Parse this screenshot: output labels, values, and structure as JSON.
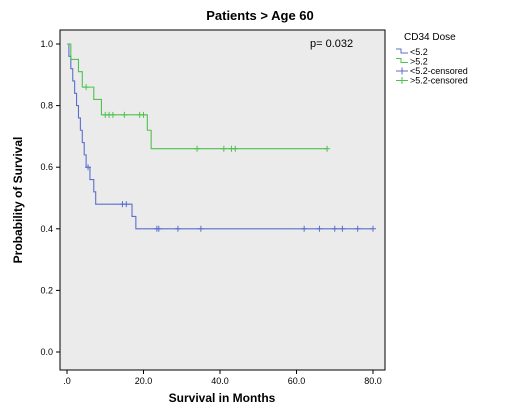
{
  "colors": {
    "background": "#ebebeb",
    "lt52": "#5b6fcc",
    "gt52": "#4fc24f"
  },
  "chart_data": {
    "type": "line",
    "subtype": "kaplan-meier step",
    "title": "Patients > Age 60",
    "xlabel": "Survival in Months",
    "ylabel": "Probability of Survival",
    "xlim": [
      0,
      80
    ],
    "ylim": [
      0,
      1
    ],
    "xticks": [
      ".0",
      "20.0",
      "40.0",
      "60.0",
      "80.0"
    ],
    "yticks": [
      "0.0",
      "0.2",
      "0.4",
      "0.6",
      "0.8",
      "1.0"
    ],
    "annotation": "p= 0.032",
    "legend": {
      "title": "CD34 Dose",
      "placement": "right",
      "entries": [
        "<5.2",
        ">5.2",
        "<5.2-censored",
        ">5.2-censored"
      ]
    },
    "series": [
      {
        "name": "<5.2",
        "color": "#5b6fcc",
        "steps": [
          [
            0,
            1.0
          ],
          [
            0.5,
            0.96
          ],
          [
            1,
            0.92
          ],
          [
            1.5,
            0.88
          ],
          [
            2,
            0.84
          ],
          [
            2.5,
            0.8
          ],
          [
            3,
            0.76
          ],
          [
            3.5,
            0.72
          ],
          [
            4,
            0.68
          ],
          [
            4.5,
            0.64
          ],
          [
            5,
            0.6
          ],
          [
            6,
            0.56
          ],
          [
            7,
            0.52
          ],
          [
            7.5,
            0.48
          ],
          [
            17,
            0.44
          ],
          [
            18,
            0.4
          ],
          [
            80,
            0.4
          ]
        ],
        "censored": [
          [
            5.5,
            0.6
          ],
          [
            14.5,
            0.48
          ],
          [
            15.5,
            0.48
          ],
          [
            23.5,
            0.4
          ],
          [
            24,
            0.4
          ],
          [
            29,
            0.4
          ],
          [
            35,
            0.4
          ],
          [
            62,
            0.4
          ],
          [
            66,
            0.4
          ],
          [
            70,
            0.4
          ],
          [
            72,
            0.4
          ],
          [
            76,
            0.4
          ],
          [
            80,
            0.4
          ]
        ]
      },
      {
        "name": ">5.2",
        "color": "#4fc24f",
        "steps": [
          [
            0,
            1.0
          ],
          [
            1,
            0.95
          ],
          [
            3,
            0.91
          ],
          [
            4,
            0.86
          ],
          [
            7,
            0.82
          ],
          [
            9,
            0.77
          ],
          [
            21,
            0.72
          ],
          [
            22,
            0.66
          ],
          [
            68,
            0.66
          ]
        ],
        "censored": [
          [
            5,
            0.86
          ],
          [
            10,
            0.77
          ],
          [
            11,
            0.77
          ],
          [
            12,
            0.77
          ],
          [
            15,
            0.77
          ],
          [
            19,
            0.77
          ],
          [
            20,
            0.77
          ],
          [
            34,
            0.66
          ],
          [
            41,
            0.66
          ],
          [
            43,
            0.66
          ],
          [
            44,
            0.66
          ],
          [
            68,
            0.66
          ]
        ]
      }
    ]
  }
}
